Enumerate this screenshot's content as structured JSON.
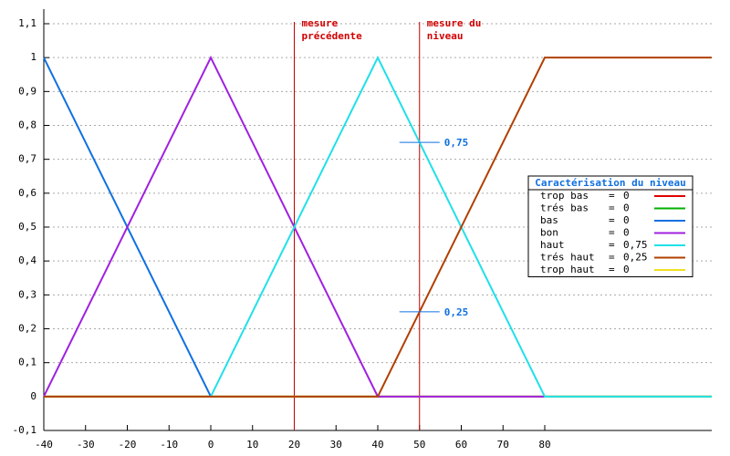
{
  "chart_data": {
    "type": "line",
    "xlim": [
      -40,
      120
    ],
    "xticks": [
      -40,
      -30,
      -20,
      -10,
      0,
      10,
      20,
      30,
      40,
      50,
      60,
      70,
      80
    ],
    "ylim": [
      -0.1,
      1.1
    ],
    "yticks": [
      {
        "value": -0.1,
        "label": "-0,1"
      },
      0,
      {
        "value": 0.1,
        "label": "0,1"
      },
      {
        "value": 0.2,
        "label": "0,2"
      },
      {
        "value": 0.3,
        "label": "0,3"
      },
      {
        "value": 0.4,
        "label": "0,4"
      },
      {
        "value": 0.5,
        "label": "0,5"
      },
      {
        "value": 0.6,
        "label": "0,6"
      },
      {
        "value": 0.7,
        "label": "0,7"
      },
      {
        "value": 0.8,
        "label": "0,8"
      },
      {
        "value": 0.9,
        "label": "0,9"
      },
      1,
      {
        "value": 1.1,
        "label": "1,1"
      }
    ],
    "grid": true,
    "legend_title": "Caractérisation du niveau",
    "legend_separator": "=",
    "series": [
      {
        "name": "trop bas",
        "color": "#e00000",
        "x": [
          -40,
          120
        ],
        "values": [
          0,
          0
        ],
        "degree": 0
      },
      {
        "name": "trés bas",
        "color": "#00b000",
        "x": [
          -40,
          120
        ],
        "values": [
          0,
          0
        ],
        "degree": 0
      },
      {
        "name": "bas",
        "color": "#1070e0",
        "x": [
          -40,
          0
        ],
        "values": [
          1,
          0
        ],
        "degree": 0
      },
      {
        "name": "bon",
        "color": "#a020e0",
        "x": [
          -40,
          0,
          40,
          80
        ],
        "values": [
          0,
          1,
          0,
          0
        ],
        "degree": 0
      },
      {
        "name": "haut",
        "color": "#20e0e8",
        "x": [
          0,
          40,
          80,
          120
        ],
        "values": [
          0,
          1,
          0,
          0
        ],
        "degree": {
          "value": 0.75,
          "label": "0,75"
        }
      },
      {
        "name": "trés haut",
        "color": "#b04000",
        "x": [
          -40,
          40,
          80,
          120
        ],
        "values": [
          0,
          0,
          1,
          1
        ],
        "degree": {
          "value": 0.25,
          "label": "0,25"
        }
      },
      {
        "name": "trop haut",
        "color": "#f0e020",
        "x": [
          -40,
          120
        ],
        "values": [
          0,
          0
        ],
        "degree": 0
      }
    ],
    "markers": [
      {
        "x": 20,
        "lines": [
          "mesure",
          "précédente"
        ]
      },
      {
        "x": 50,
        "lines": [
          "mesure du",
          "niveau"
        ]
      }
    ],
    "annotations": [
      {
        "x": 50,
        "y": 0.75,
        "label": "0,75"
      },
      {
        "x": 50,
        "y": 0.25,
        "label": "0,25"
      }
    ]
  }
}
